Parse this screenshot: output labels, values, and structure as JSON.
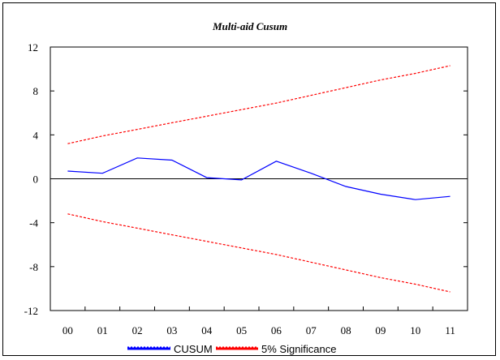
{
  "chart_data": {
    "type": "line",
    "title": "Multi-aid Cusum",
    "categories": [
      "00",
      "01",
      "02",
      "03",
      "04",
      "05",
      "06",
      "07",
      "08",
      "09",
      "10",
      "11"
    ],
    "ylim": [
      -12,
      12
    ],
    "yticks": [
      -12,
      -8,
      -4,
      0,
      4,
      8,
      12
    ],
    "ytick_labels": [
      "-12",
      "-8",
      "-4",
      "0",
      "4",
      "8",
      "12"
    ],
    "zero_line": true,
    "grid": false,
    "legend_position": "bottom",
    "series": [
      {
        "name": "CUSUM",
        "color": "#0000ff",
        "style": "solid",
        "values": [
          0.7,
          0.5,
          1.9,
          1.7,
          0.1,
          -0.1,
          1.6,
          0.5,
          -0.7,
          -1.4,
          -1.9,
          -1.6
        ]
      },
      {
        "name": "5% Significance",
        "color": "#ff0000",
        "style": "dashed",
        "values": [
          3.2,
          3.9,
          4.5,
          5.1,
          5.7,
          6.3,
          6.9,
          7.6,
          8.3,
          9.0,
          9.6,
          10.3
        ]
      },
      {
        "name": "",
        "color": "#ff0000",
        "style": "dashed",
        "values": [
          -3.2,
          -3.9,
          -4.5,
          -5.1,
          -5.7,
          -6.3,
          -6.9,
          -7.6,
          -8.3,
          -9.0,
          -9.6,
          -10.3
        ]
      }
    ]
  }
}
